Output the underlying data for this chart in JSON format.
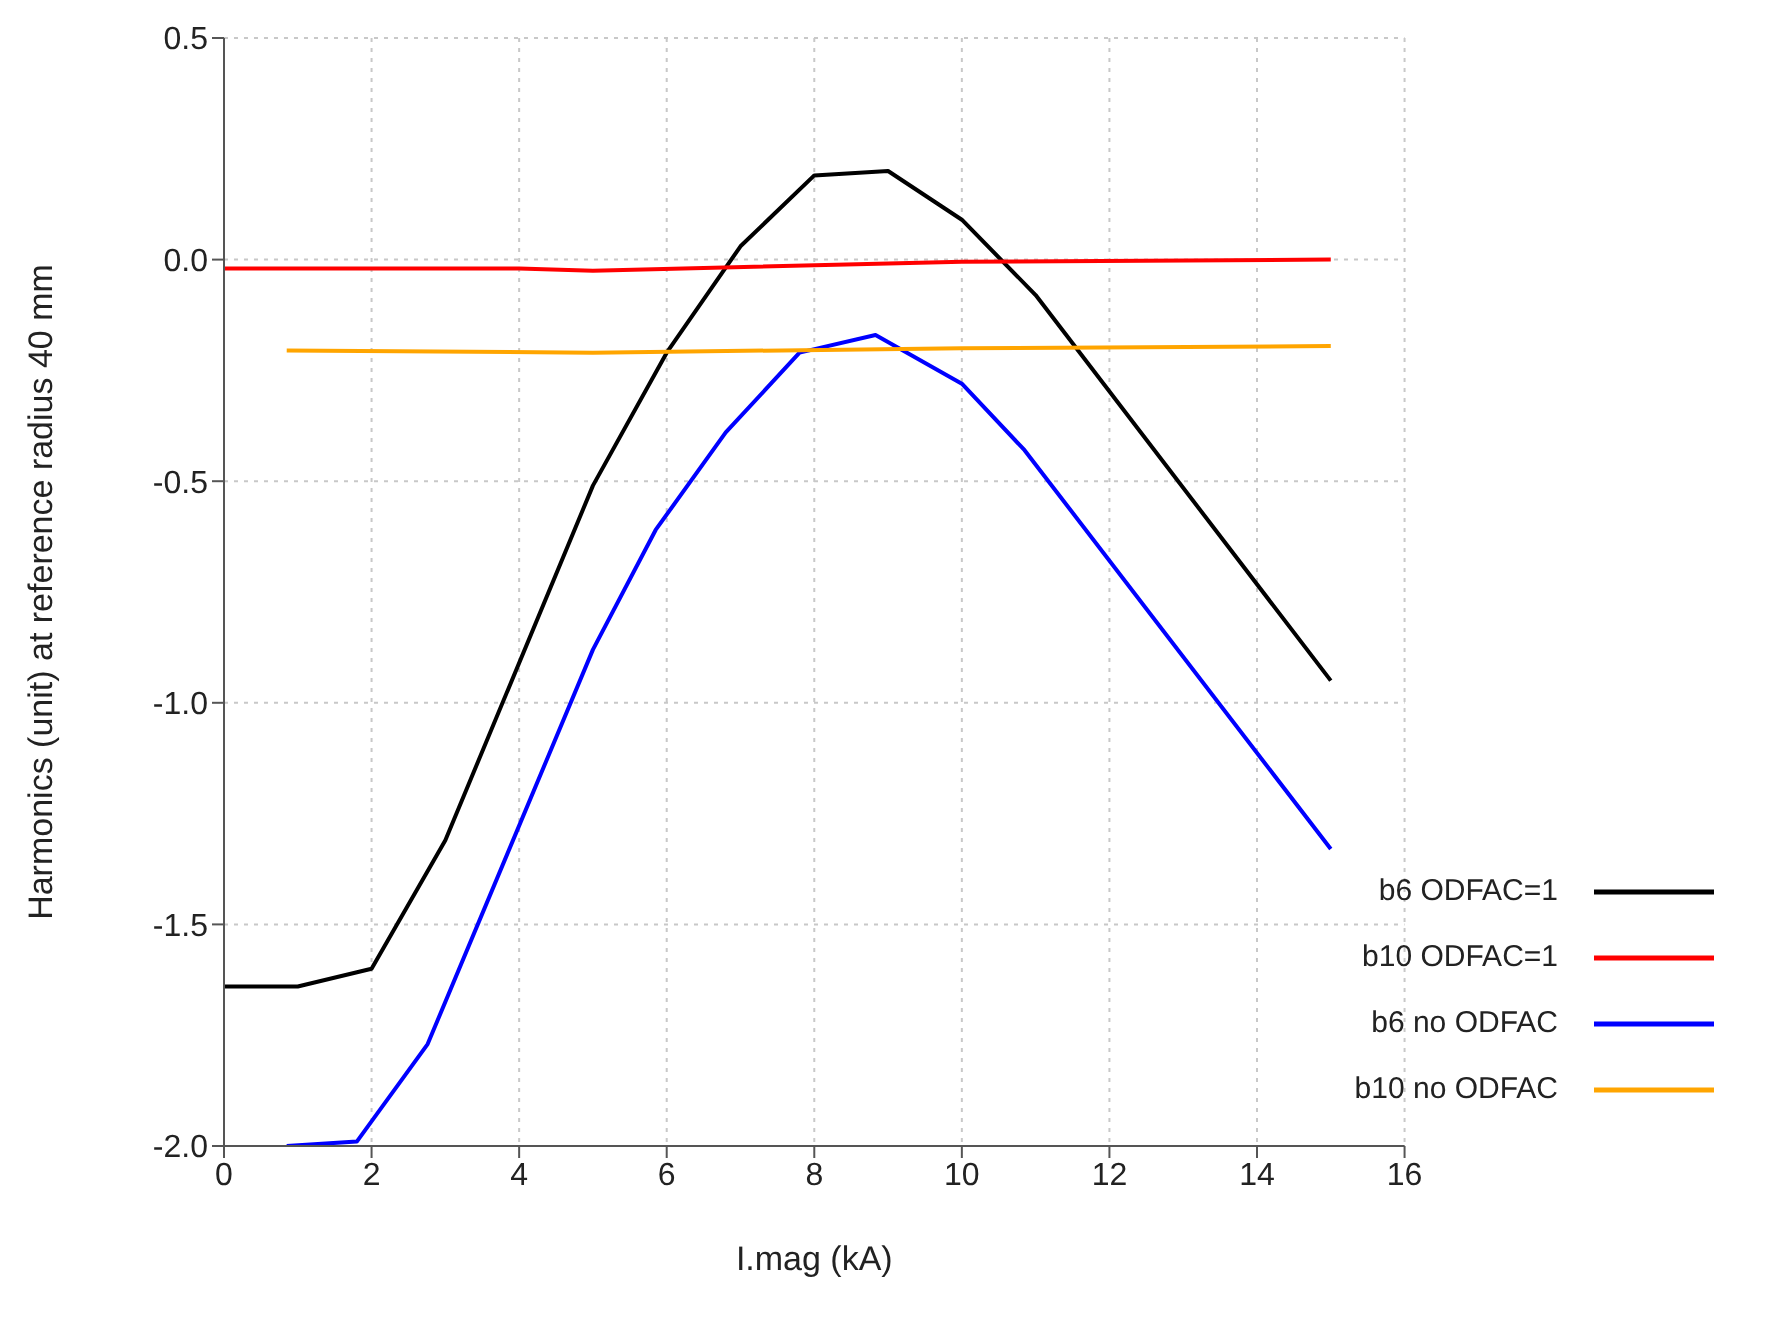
{
  "chart_data": {
    "type": "line",
    "xlabel": "I.mag (kA)",
    "ylabel": "Harmonics (unit) at reference radius 40 mm",
    "xlim": [
      0,
      16
    ],
    "xticks": [
      0,
      2,
      4,
      6,
      8,
      10,
      12,
      14,
      16
    ],
    "ylim": [
      -2.0,
      0.5
    ],
    "yticks": [
      {
        "value": -2.0,
        "label": "-2.0"
      },
      {
        "value": -1.5,
        "label": "-1.5"
      },
      {
        "value": -1.0,
        "label": "-1.0"
      },
      {
        "value": -0.5,
        "label": "-0.5"
      },
      {
        "value": 0.0,
        "label": "0.0"
      },
      {
        "value": 0.5,
        "label": "0.5"
      }
    ],
    "grid": true,
    "legend": "bottom right",
    "line_style": "solid",
    "marker": "none",
    "series": [
      {
        "name": "b6 ODFAC=1",
        "color": "#000000",
        "x": [
          0,
          1,
          2,
          3,
          5,
          6,
          7,
          8,
          9,
          10,
          11,
          15
        ],
        "values": [
          -1.64,
          -1.64,
          -1.6,
          -1.31,
          -0.51,
          -0.21,
          0.03,
          0.19,
          0.2,
          0.09,
          -0.08,
          -0.95
        ]
      },
      {
        "name": "b10 ODFAC=1",
        "color": "#ff0000",
        "x": [
          0,
          4,
          5,
          10,
          15
        ],
        "values": [
          -0.02,
          -0.02,
          -0.025,
          -0.005,
          0.0
        ]
      },
      {
        "name": "b6 no ODFAC",
        "color": "#0000ff",
        "x": [
          0.85,
          1.8,
          2.76,
          5,
          5.85,
          6.8,
          7.8,
          8.83,
          10,
          10.85,
          15
        ],
        "values": [
          -2.0,
          -1.99,
          -1.77,
          -0.88,
          -0.61,
          -0.39,
          -0.21,
          -0.17,
          -0.28,
          -0.43,
          -1.33
        ]
      },
      {
        "name": "b10 no ODFAC",
        "color": "#ffa500",
        "x": [
          0.85,
          5,
          10,
          15
        ],
        "values": [
          -0.205,
          -0.21,
          -0.2,
          -0.195
        ]
      }
    ]
  }
}
